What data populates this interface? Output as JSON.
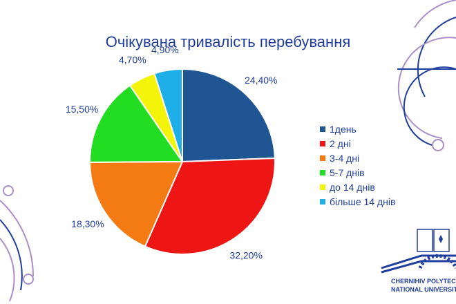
{
  "colors": {
    "title": "#1f3d9c",
    "deco_line": "#a98ec9",
    "deco_line_dark": "#1f3d9c"
  },
  "logo": {
    "line1": "CHERNIHIV POLYTECHNIC",
    "line2": "NATIONAL UNIVERSITY"
  },
  "chart_data": {
    "type": "pie",
    "title": "Очікувана тривалість перебування",
    "legend_position": "right",
    "slices": [
      {
        "label": "1день",
        "value": 24.4,
        "display": "24,40%",
        "color": "#1f5593"
      },
      {
        "label": "2 дні",
        "value": 32.2,
        "display": "32,20%",
        "color": "#ee1515"
      },
      {
        "label": "3-4 дні",
        "value": 18.3,
        "display": "18,30%",
        "color": "#f47a14"
      },
      {
        "label": "5-7 днів",
        "value": 15.5,
        "display": "15,50%",
        "color": "#22dd22"
      },
      {
        "label": "до 14 днів",
        "value": 4.7,
        "display": "4,70%",
        "color": "#f4f40a"
      },
      {
        "label": "більше 14 днів",
        "value": 4.9,
        "display": "4,90%",
        "color": "#1eaee8"
      }
    ]
  }
}
